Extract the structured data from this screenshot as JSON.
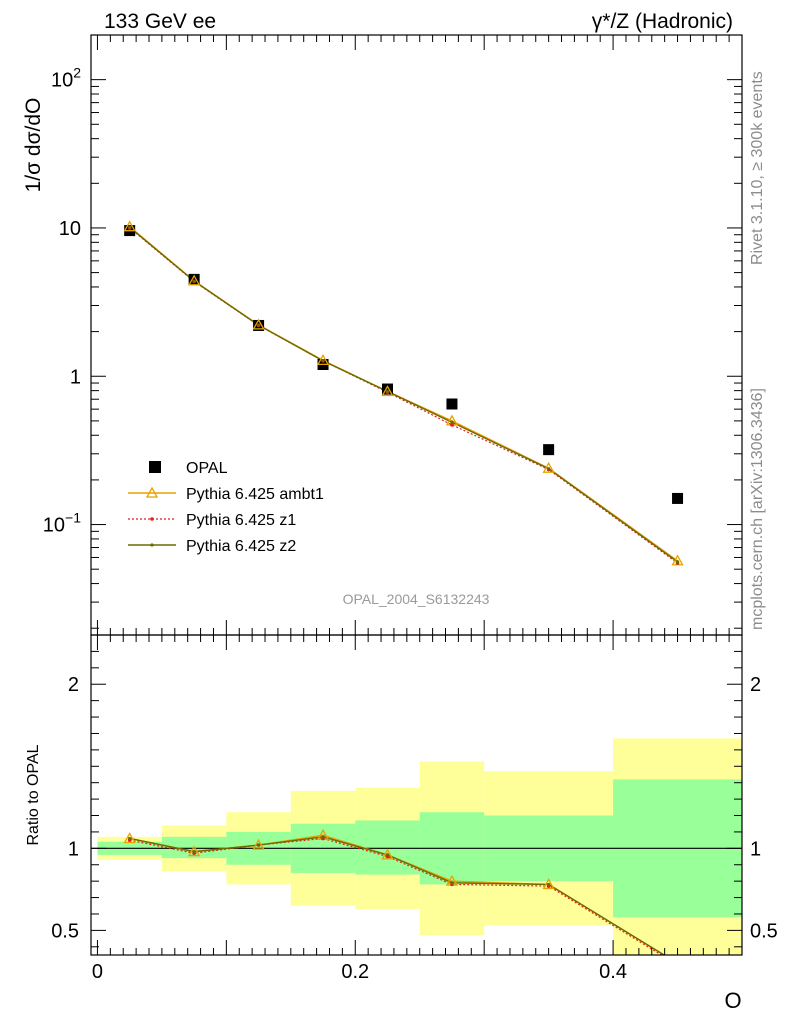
{
  "header": {
    "left_title": "133 GeV ee",
    "right_title": "γ*/Z (Hadronic)"
  },
  "side_text": {
    "upper": "Rivet 3.1.10, ≥ 300k events",
    "lower": "mcplots.cern.ch [arXiv:1306.3436]"
  },
  "watermark": "OPAL_2004_S6132243",
  "chart_data": [
    {
      "type": "scatter",
      "panel": "main",
      "ylabel": "1/σ dσ/dO",
      "xlabel": "",
      "yscale": "log",
      "ylim": [
        0.018,
        200
      ],
      "xlim": [
        -0.005,
        0.5
      ],
      "yticks": [
        {
          "value": 100,
          "base": "10",
          "exp": "2"
        },
        {
          "value": 10,
          "base": "10",
          "exp": ""
        },
        {
          "value": 1,
          "base": "1",
          "exp": ""
        },
        {
          "value": 0.1,
          "base": "10",
          "exp": "−1"
        }
      ],
      "legend": {
        "placement": "bottom-left",
        "entries": [
          "OPAL",
          "Pythia 6.425 ambt1",
          "Pythia 6.425 z1",
          "Pythia 6.425 z2"
        ]
      },
      "x": [
        0.025,
        0.075,
        0.125,
        0.175,
        0.225,
        0.275,
        0.35,
        0.45
      ],
      "series": [
        {
          "name": "OPAL",
          "color": "#000000",
          "style": "square",
          "values": [
            9.6,
            4.5,
            2.2,
            1.2,
            0.82,
            0.65,
            0.32,
            0.15
          ]
        },
        {
          "name": "Pythia 6.425 ambt1",
          "color": "#e8a200",
          "style": "triangle-line",
          "values": [
            10.2,
            4.4,
            2.22,
            1.28,
            0.79,
            0.5,
            0.24,
            0.057
          ]
        },
        {
          "name": "Pythia 6.425 z1",
          "color": "#e0201b",
          "style": "dotted-line",
          "values": [
            10.0,
            4.35,
            2.2,
            1.27,
            0.78,
            0.47,
            0.235,
            0.055
          ]
        },
        {
          "name": "Pythia 6.425 z2",
          "color": "#6b6b00",
          "style": "dot-line",
          "values": [
            10.1,
            4.38,
            2.21,
            1.27,
            0.79,
            0.49,
            0.238,
            0.056
          ]
        }
      ]
    },
    {
      "type": "line",
      "panel": "ratio",
      "ylabel": "Ratio to OPAL",
      "xlabel": "O",
      "ylim": [
        0.35,
        2.3
      ],
      "xlim": [
        -0.005,
        0.5
      ],
      "xticks": [
        "0",
        "0.2",
        "0.4"
      ],
      "yticks": [
        "0.5",
        "1",
        "2"
      ],
      "bins": [
        {
          "lo": 0.0,
          "hi": 0.05,
          "stat": [
            0.96,
            1.04
          ],
          "total": [
            0.93,
            1.07
          ]
        },
        {
          "lo": 0.05,
          "hi": 0.1,
          "stat": [
            0.94,
            1.07
          ],
          "total": [
            0.86,
            1.14
          ]
        },
        {
          "lo": 0.1,
          "hi": 0.15,
          "stat": [
            0.9,
            1.1
          ],
          "total": [
            0.78,
            1.22
          ]
        },
        {
          "lo": 0.15,
          "hi": 0.2,
          "stat": [
            0.85,
            1.15
          ],
          "total": [
            0.65,
            1.35
          ]
        },
        {
          "lo": 0.2,
          "hi": 0.25,
          "stat": [
            0.84,
            1.17
          ],
          "total": [
            0.63,
            1.37
          ]
        },
        {
          "lo": 0.25,
          "hi": 0.3,
          "stat": [
            0.78,
            1.22
          ],
          "total": [
            0.47,
            1.53
          ]
        },
        {
          "lo": 0.3,
          "hi": 0.4,
          "stat": [
            0.8,
            1.2
          ],
          "total": [
            0.53,
            1.47
          ]
        },
        {
          "lo": 0.4,
          "hi": 0.5,
          "stat": [
            0.58,
            1.42
          ],
          "total": [
            0.33,
            1.67
          ]
        }
      ],
      "x": [
        0.025,
        0.075,
        0.125,
        0.175,
        0.225,
        0.275,
        0.35,
        0.45
      ],
      "series": [
        {
          "name": "Pythia 6.425 ambt1",
          "color": "#e8a200",
          "style": "triangle-line",
          "values": [
            1.06,
            0.98,
            1.02,
            1.08,
            0.96,
            0.8,
            0.78,
            0.3
          ]
        },
        {
          "name": "Pythia 6.425 z1",
          "color": "#e0201b",
          "style": "dotted-line",
          "values": [
            1.05,
            0.97,
            1.02,
            1.06,
            0.95,
            0.78,
            0.77,
            0.29
          ]
        },
        {
          "name": "Pythia 6.425 z2",
          "color": "#6b6b00",
          "style": "dot-line",
          "values": [
            1.06,
            0.98,
            1.02,
            1.07,
            0.96,
            0.79,
            0.78,
            0.3
          ]
        }
      ]
    }
  ]
}
